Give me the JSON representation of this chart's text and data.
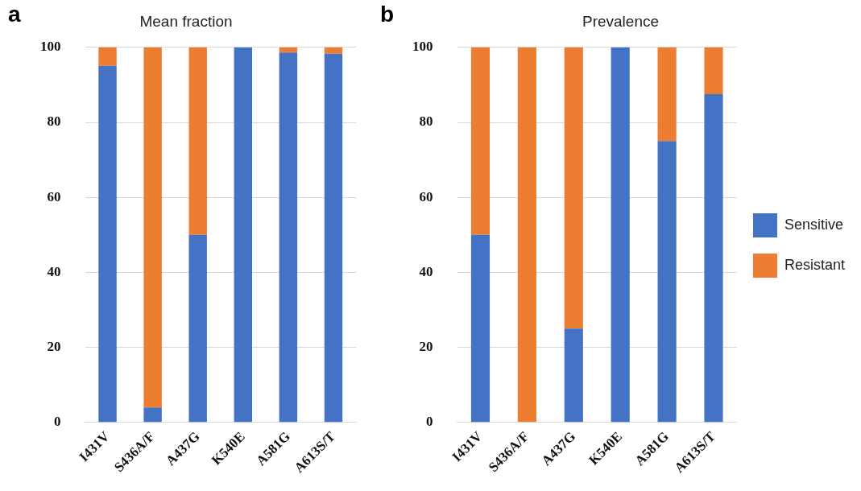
{
  "chart_data": [
    {
      "type": "bar",
      "title": "Mean fraction",
      "annotations": [
        "a"
      ],
      "categories": [
        "I431V",
        "S436A/F",
        "A437G",
        "K540E",
        "A581G",
        "A613S/T"
      ],
      "stacked": true,
      "series": [
        {
          "color": "#4472c4",
          "values": [
            95.1,
            4,
            50,
            100,
            98.6,
            98.3
          ]
        },
        {
          "color": "#ed7d31",
          "values": [
            4.9,
            96,
            50,
            0,
            1.4,
            1.7
          ]
        }
      ],
      "ylim": [
        0,
        100
      ],
      "yticks": [
        0,
        20,
        40,
        60,
        80,
        100
      ],
      "grid": "y",
      "legend": false
    },
    {
      "type": "bar",
      "title": "Prevalence",
      "annotations": [
        "b"
      ],
      "categories": [
        "I431V",
        "S436A/F",
        "A437G",
        "K540E",
        "A581G",
        "A613S/T"
      ],
      "stacked": true,
      "series": [
        {
          "name": "Sensitive",
          "color": "#4472c4",
          "values": [
            50,
            0,
            25,
            100,
            75,
            87.5
          ]
        },
        {
          "name": "Resistant",
          "color": "#ed7d31",
          "values": [
            50,
            100,
            75,
            0,
            25,
            12.5
          ]
        }
      ],
      "ylim": [
        0,
        100
      ],
      "yticks": [
        0,
        20,
        40,
        60,
        80,
        100
      ],
      "grid": "y",
      "legend": "right"
    }
  ]
}
